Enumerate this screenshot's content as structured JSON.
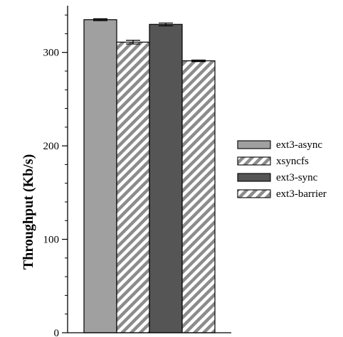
{
  "chart_data": {
    "type": "bar",
    "title": "",
    "xlabel": "",
    "ylabel": "Throughput (Kb/s)",
    "ylim": [
      0,
      350
    ],
    "yticks": [
      0,
      100,
      200,
      300
    ],
    "minor_tick_step": 20,
    "grid": false,
    "legend_position": "right",
    "series": [
      {
        "name": "ext3-async",
        "value": 335,
        "error": 1.0,
        "fill": "#a0a0a0",
        "pattern": "solid"
      },
      {
        "name": "xsyncfs",
        "value": 311,
        "error": 2.0,
        "fill": "#8c8c8c",
        "pattern": "diagonal-stripes"
      },
      {
        "name": "ext3-sync",
        "value": 330,
        "error": 1.5,
        "fill": "#555555",
        "pattern": "solid"
      },
      {
        "name": "ext3-barrier",
        "value": 291,
        "error": 0.8,
        "fill": "#8c8c8c",
        "pattern": "diagonal-stripes"
      }
    ]
  }
}
